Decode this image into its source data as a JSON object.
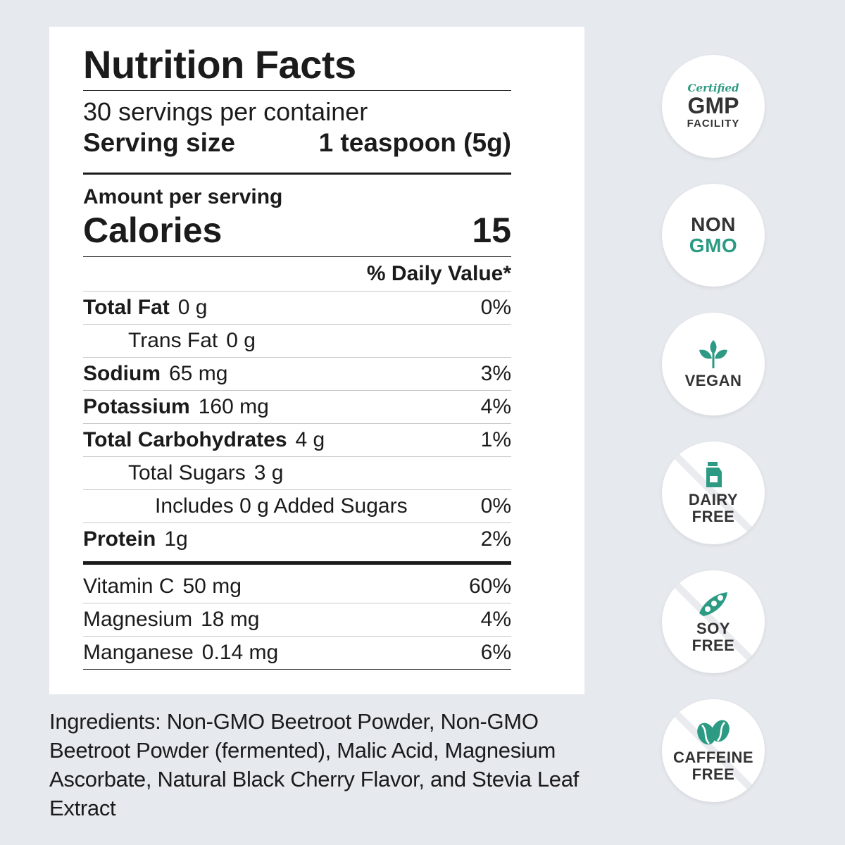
{
  "nutrition": {
    "title": "Nutrition Facts",
    "servings_per_container": "30 servings per container",
    "serving_size_label": "Serving size",
    "serving_size_value": "1 teaspoon (5g)",
    "amount_per_serving": "Amount per serving",
    "calories_label": "Calories",
    "calories_value": "15",
    "daily_value_header": "% Daily Value*",
    "nutrients": [
      {
        "name": "Total Fat",
        "amount": "0 g",
        "dv": "0%"
      },
      {
        "name": "Trans Fat",
        "amount": "0 g",
        "dv": ""
      },
      {
        "name": "Sodium",
        "amount": "65 mg",
        "dv": "3%"
      },
      {
        "name": "Potassium",
        "amount": "160 mg",
        "dv": "4%"
      },
      {
        "name": "Total Carbohydrates",
        "amount": "4 g",
        "dv": "1%"
      },
      {
        "name": "Total Sugars",
        "amount": "3 g",
        "dv": ""
      },
      {
        "name": "Includes 0 g Added Sugars",
        "amount": "",
        "dv": "0%"
      },
      {
        "name": "Protein",
        "amount": "1g",
        "dv": "2%"
      }
    ],
    "vitamins": [
      {
        "name": "Vitamin C",
        "amount": "50 mg",
        "dv": "60%"
      },
      {
        "name": "Magnesium",
        "amount": "18 mg",
        "dv": "4%"
      },
      {
        "name": "Manganese",
        "amount": "0.14 mg",
        "dv": "6%"
      }
    ]
  },
  "ingredients": "Ingredients: Non-GMO Beetroot Powder, Non-GMO Beetroot Powder (fermented), Malic Acid, Magnesium Ascorbate, Natural Black Cherry Flavor, and Stevia Leaf Extract",
  "badges": {
    "gmp": {
      "line1": "Certified",
      "line2": "GMP",
      "line3": "FACILITY"
    },
    "nongmo": {
      "line1": "NON",
      "line2": "GMO"
    },
    "vegan": {
      "label": "VEGAN",
      "icon": "leaf-icon"
    },
    "dairy": {
      "line1": "DAIRY",
      "line2": "FREE",
      "icon": "milk-carton-icon"
    },
    "soy": {
      "line1": "SOY",
      "line2": "FREE",
      "icon": "soy-pod-icon"
    },
    "caffeine": {
      "line1": "CAFFEINE",
      "line2": "FREE",
      "icon": "coffee-bean-icon"
    }
  },
  "colors": {
    "accent": "#2d9b83",
    "background": "#e6e9ee",
    "text": "#1b1b1b"
  }
}
